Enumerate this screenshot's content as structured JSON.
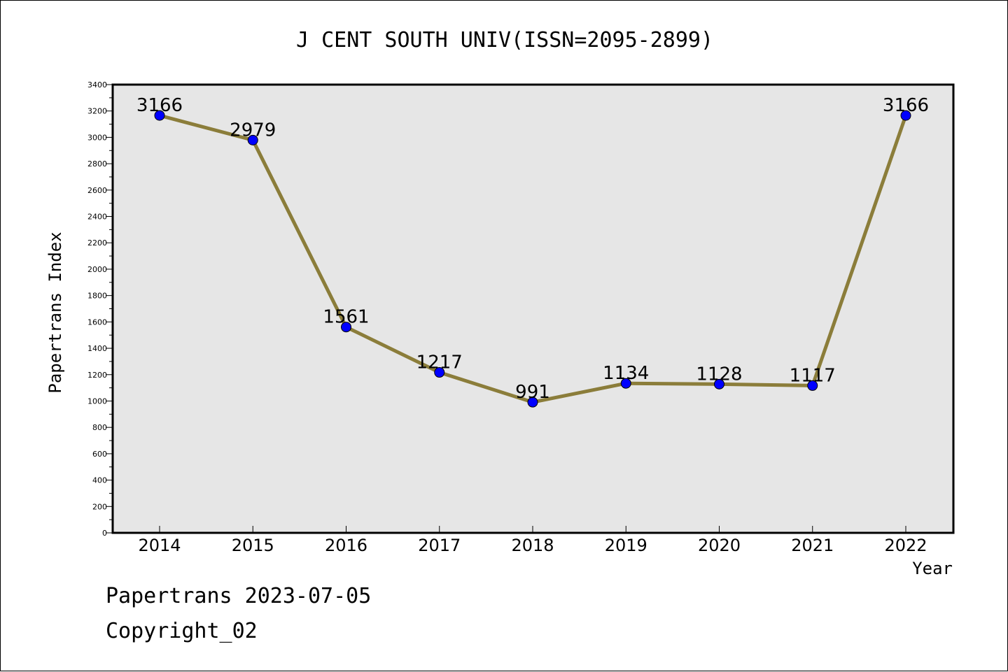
{
  "chart_data": {
    "type": "line",
    "title": "J CENT SOUTH UNIV(ISSN=2095-2899)",
    "xlabel": "Year",
    "ylabel": "Papertrans Index",
    "categories": [
      "2014",
      "2015",
      "2016",
      "2017",
      "2018",
      "2019",
      "2020",
      "2021",
      "2022"
    ],
    "values": [
      3166,
      2979,
      1561,
      1217,
      991,
      1134,
      1128,
      1117,
      3166
    ],
    "ylim": [
      0,
      3400
    ],
    "yticks": [
      0,
      200,
      400,
      600,
      800,
      1000,
      1200,
      1400,
      1600,
      1800,
      2000,
      2200,
      2400,
      2600,
      2800,
      3000,
      3200,
      3400
    ],
    "grid": false,
    "colors": {
      "line": "#8b7d3a",
      "marker": "#0000ff",
      "plot_background": "#e6e6e6"
    }
  },
  "footer": {
    "date_text": "Papertrans 2023-07-05",
    "copyright_text": "Copyright_02"
  }
}
